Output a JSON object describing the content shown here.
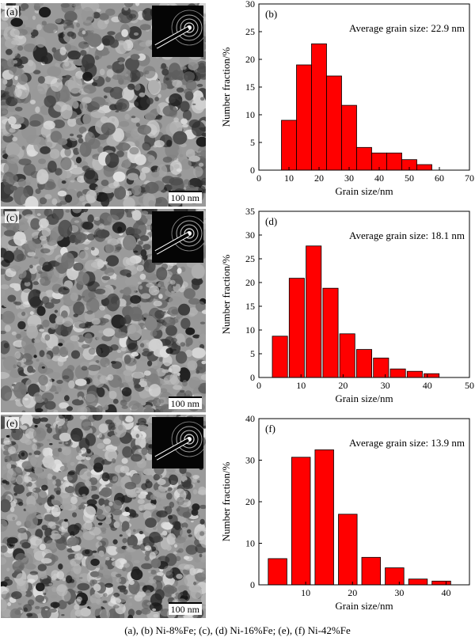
{
  "tem_panels": [
    {
      "letter": "(a)",
      "scale_label": "100 nm"
    },
    {
      "letter": "(c)",
      "scale_label": "100 nm"
    },
    {
      "letter": "(e)",
      "scale_label": "100 nm"
    }
  ],
  "chart_data": [
    {
      "type": "bar",
      "panel": "(b)",
      "annotation": "Average grain size: 22.9 nm",
      "xlabel": "Grain size/nm",
      "ylabel": "Number fraction/%",
      "xlim": [
        0,
        70
      ],
      "ylim": [
        0,
        30
      ],
      "xticks": [
        0,
        10,
        20,
        30,
        40,
        50,
        60,
        70
      ],
      "yticks": [
        0,
        5,
        10,
        15,
        20,
        25,
        30
      ],
      "bar_width": 5,
      "x": [
        10,
        15,
        20,
        25,
        30,
        35,
        40,
        45,
        50,
        55
      ],
      "values": [
        9,
        19,
        22.8,
        17,
        11.7,
        4.1,
        3.1,
        3.1,
        1.9,
        1.0
      ],
      "bar_color": "#ff0000"
    },
    {
      "type": "bar",
      "panel": "(d)",
      "annotation": "Average grain size: 18.1 nm",
      "xlabel": "Grain size/nm",
      "ylabel": "Number fraction/%",
      "xlim": [
        0,
        50
      ],
      "ylim": [
        0,
        35
      ],
      "xticks": [
        0,
        10,
        20,
        30,
        40,
        50
      ],
      "yticks": [
        0,
        5,
        10,
        15,
        20,
        25,
        30,
        35
      ],
      "bar_width": 3.6,
      "x": [
        5,
        9,
        13,
        17,
        21,
        25,
        29,
        33,
        37,
        41,
        45
      ],
      "values": [
        8.7,
        20.9,
        27.7,
        18.8,
        9.2,
        5.9,
        4.1,
        1.8,
        1.3,
        0.8,
        0
      ],
      "bar_color": "#ff0000"
    },
    {
      "type": "bar",
      "panel": "(f)",
      "annotation": "Average grain size: 13.9 nm",
      "xlabel": "Grain size/nm",
      "ylabel": "Number fraction/%",
      "xlim": [
        0,
        45
      ],
      "ylim": [
        0,
        40
      ],
      "xticks": [
        10,
        20,
        30,
        40
      ],
      "yticks": [
        0,
        10,
        20,
        30,
        40
      ],
      "bar_width": 4,
      "x": [
        4,
        9,
        14,
        19,
        24,
        29,
        34,
        39
      ],
      "values": [
        6.3,
        30.7,
        32.5,
        17,
        6.6,
        4.1,
        1.4,
        0.9
      ],
      "bar_color": "#ff0000"
    }
  ],
  "caption": "(a), (b) Ni-8%Fe; (c), (d)  Ni-16%Fe; (e), (f) Ni-42%Fe"
}
